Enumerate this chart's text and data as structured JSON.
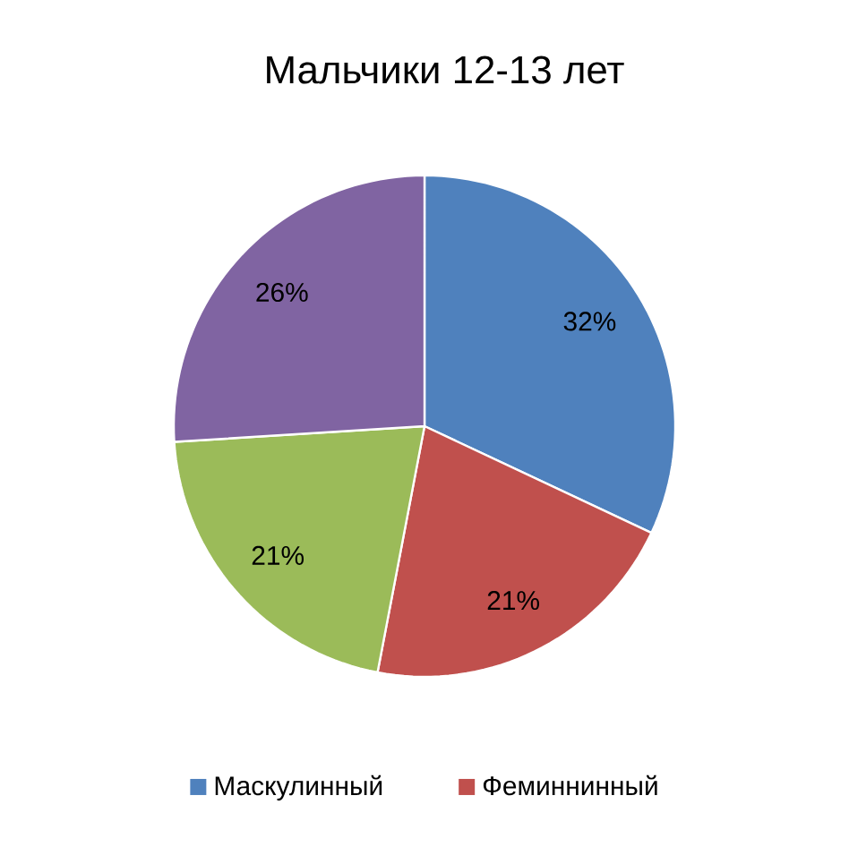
{
  "chart_data": {
    "type": "pie",
    "title": "Мальчики  12-13 лет",
    "categories": [
      "Маскулинный",
      "Феминнинный",
      null,
      null
    ],
    "values": [
      32,
      21,
      21,
      26
    ],
    "colors": [
      "#4f81bd",
      "#c0504d",
      "#9bbb59",
      "#8064a2"
    ],
    "value_labels": [
      "32%",
      "21%",
      "21%",
      "26%"
    ],
    "legend": "bottom"
  }
}
